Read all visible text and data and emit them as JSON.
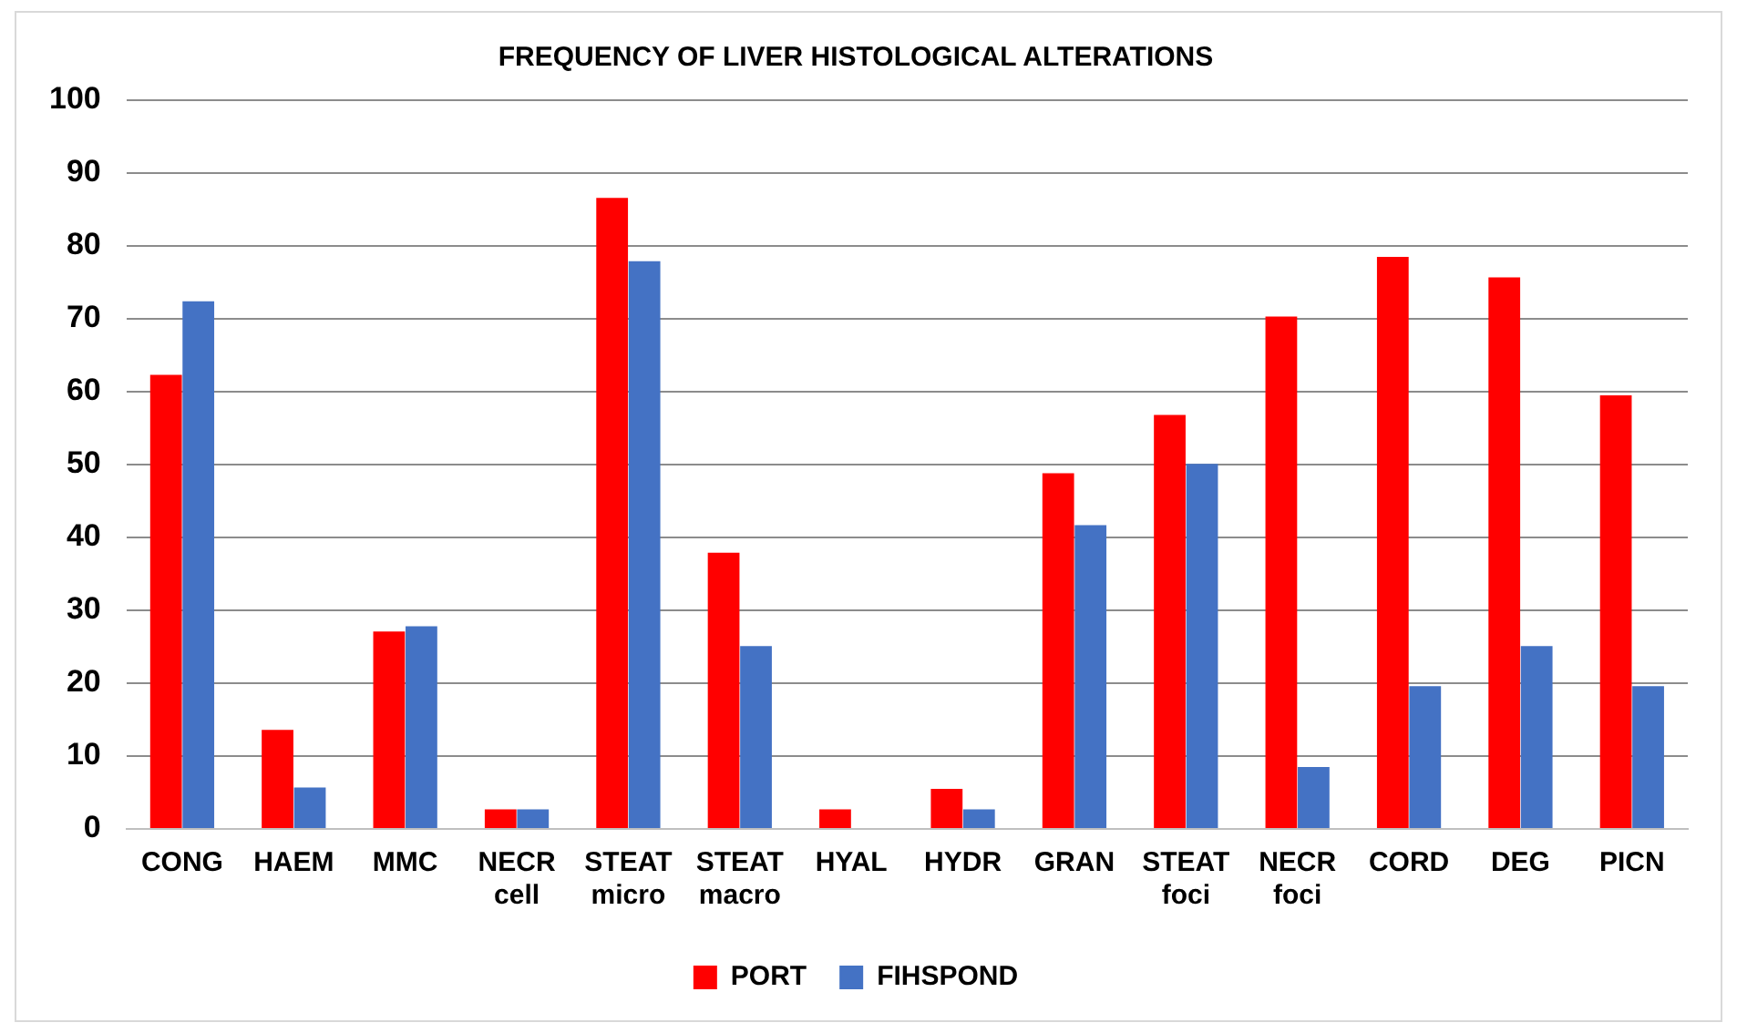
{
  "chart_data": {
    "type": "bar",
    "title": "FREQUENCY OF LIVER HISTOLOGICAL ALTERATIONS",
    "categories": [
      "CONG",
      "HAEM",
      "MMC",
      "NECR\ncell",
      "STEAT\nmicro",
      "STEAT\nmacro",
      "HYAL",
      "HYDR",
      "GRAN",
      "STEAT\nfoci",
      "NECR\nfoci",
      "CORD",
      "DEG",
      "PICN"
    ],
    "series": [
      {
        "name": "PORT",
        "color": "#ff0000",
        "values": [
          62.3,
          13.6,
          27.1,
          2.7,
          86.6,
          37.9,
          2.7,
          5.5,
          48.8,
          56.8,
          70.3,
          78.5,
          75.7,
          59.5
        ]
      },
      {
        "name": "FIHSPOND",
        "color": "#4472c4",
        "values": [
          72.4,
          5.7,
          27.8,
          2.7,
          77.9,
          25.1,
          0,
          2.7,
          41.7,
          50.1,
          8.5,
          19.6,
          25.1,
          19.6
        ]
      }
    ],
    "ylim": [
      0,
      100
    ],
    "yticks": [
      0,
      10,
      20,
      30,
      40,
      50,
      60,
      70,
      80,
      90,
      100
    ],
    "grid": "y",
    "legend": "bottom"
  }
}
